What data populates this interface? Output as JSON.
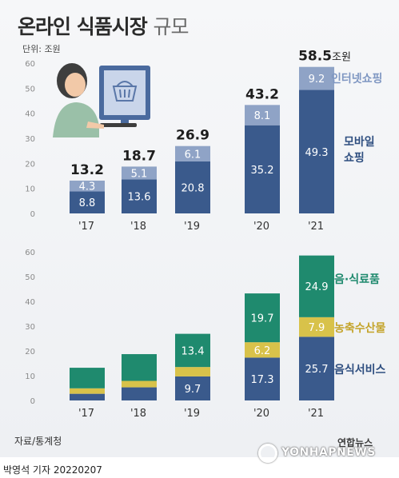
{
  "header": {
    "title_bold": "온라인 식품시장",
    "title_light": "규모",
    "unit": "단위: 조원"
  },
  "footer": {
    "source": "자료/통계청",
    "logo_text": "연합뉴스",
    "logo_en": "YONHAPNEWS",
    "byline": "박영석 기자  20220207"
  },
  "chart_data": [
    {
      "type": "bar",
      "stacked": true,
      "categories": [
        "'17",
        "'18",
        "'19",
        "'20",
        "'21"
      ],
      "ylim": [
        0,
        60
      ],
      "yticks": [
        0,
        10,
        20,
        30,
        40,
        50,
        60
      ],
      "grid": false,
      "series": [
        {
          "name": "모바일 쇼핑",
          "color": "#3a5a8c",
          "values": [
            8.8,
            13.6,
            20.8,
            35.2,
            49.3
          ]
        },
        {
          "name": "인터넷쇼핑",
          "color": "#8fa3c6",
          "values": [
            4.3,
            5.1,
            6.1,
            8.1,
            9.2
          ]
        }
      ],
      "totals": [
        "13.2",
        "18.7",
        "26.9",
        "43.2",
        "58.5"
      ],
      "totals_suffix": [
        "",
        "",
        "",
        "",
        "조원"
      ],
      "legend_placement": "right"
    },
    {
      "type": "bar",
      "stacked": true,
      "categories": [
        "'17",
        "'18",
        "'19",
        "'20",
        "'21"
      ],
      "ylim": [
        0,
        60
      ],
      "yticks": [
        0,
        10,
        20,
        30,
        40,
        50,
        60
      ],
      "grid": false,
      "series": [
        {
          "name": "음식서비스",
          "color": "#3a5a8c",
          "values": [
            2.7,
            5.3,
            9.7,
            17.3,
            25.7
          ]
        },
        {
          "name": "농축수산물",
          "color": "#d8c24a",
          "values": [
            2.2,
            2.6,
            3.8,
            6.2,
            7.9
          ]
        },
        {
          "name": "음·식료품",
          "color": "#1f8a6e",
          "values": [
            8.3,
            10.8,
            13.4,
            19.7,
            24.9
          ]
        }
      ],
      "labels_shown": [
        [
          "",
          "",
          "",
          "",
          "25.7"
        ],
        [
          "",
          "",
          "",
          "6.2",
          "7.9"
        ],
        [
          "",
          "",
          "13.4",
          "19.7",
          "24.9"
        ]
      ],
      "labels_shown_bottom": [
        "",
        "",
        "9.7",
        "17.3",
        "25.7"
      ],
      "legend_placement": "right"
    }
  ]
}
